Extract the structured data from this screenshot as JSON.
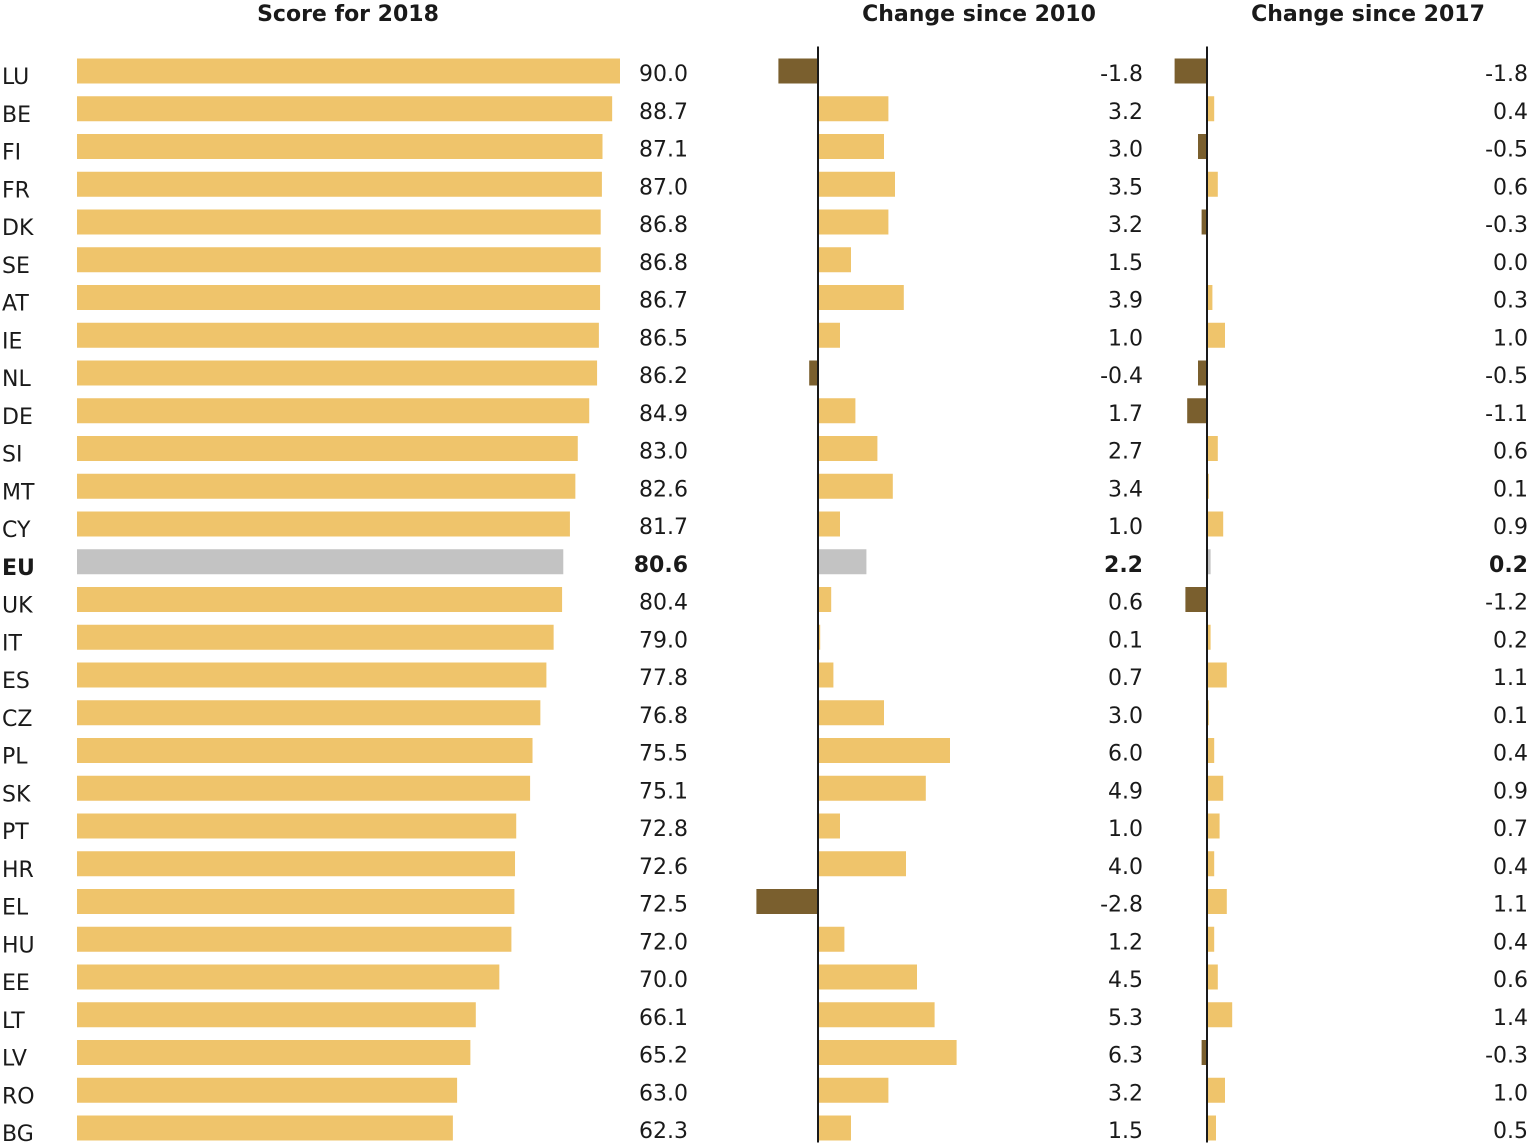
{
  "colors": {
    "positive": "#efc46b",
    "negative": "#7a5f2e",
    "eu": "#c3c3c3",
    "axis": "#1a1a1a"
  },
  "chart_data": [
    {
      "type": "bar",
      "orientation": "horizontal",
      "title": "Score for 2018",
      "categories": [
        "LU",
        "BE",
        "FI",
        "FR",
        "DK",
        "SE",
        "AT",
        "IE",
        "NL",
        "DE",
        "SI",
        "MT",
        "CY",
        "EU",
        "UK",
        "IT",
        "ES",
        "CZ",
        "PL",
        "SK",
        "PT",
        "HR",
        "EL",
        "HU",
        "EE",
        "LT",
        "LV",
        "RO",
        "BG"
      ],
      "values": [
        90.0,
        88.7,
        87.1,
        87.0,
        86.8,
        86.8,
        86.7,
        86.5,
        86.2,
        84.9,
        83.0,
        82.6,
        81.7,
        80.6,
        80.4,
        79.0,
        77.8,
        76.8,
        75.5,
        75.1,
        72.8,
        72.6,
        72.5,
        72.0,
        70.0,
        66.1,
        65.2,
        63.0,
        62.3
      ],
      "labels": [
        "90.0",
        "88.7",
        "87.1",
        "87.0",
        "86.8",
        "86.8",
        "86.7",
        "86.5",
        "86.2",
        "84.9",
        "83.0",
        "82.6",
        "81.7",
        "80.6",
        "80.4",
        "79.0",
        "77.8",
        "76.8",
        "75.5",
        "75.1",
        "72.8",
        "72.6",
        "72.5",
        "72.0",
        "70.0",
        "66.1",
        "65.2",
        "63.0",
        "62.3"
      ],
      "highlight": "EU",
      "xlim": [
        0,
        90
      ]
    },
    {
      "type": "bar",
      "orientation": "horizontal",
      "title": "Change since 2010",
      "categories": [
        "LU",
        "BE",
        "FI",
        "FR",
        "DK",
        "SE",
        "AT",
        "IE",
        "NL",
        "DE",
        "SI",
        "MT",
        "CY",
        "EU",
        "UK",
        "IT",
        "ES",
        "CZ",
        "PL",
        "SK",
        "PT",
        "HR",
        "EL",
        "HU",
        "EE",
        "LT",
        "LV",
        "RO",
        "BG"
      ],
      "values": [
        -1.8,
        3.2,
        3.0,
        3.5,
        3.2,
        1.5,
        3.9,
        1.0,
        -0.4,
        1.7,
        2.7,
        3.4,
        1.0,
        2.2,
        0.6,
        0.1,
        0.7,
        3.0,
        6.0,
        4.9,
        1.0,
        4.0,
        -2.8,
        1.2,
        4.5,
        5.3,
        6.3,
        3.2,
        1.5
      ],
      "labels": [
        "-1.8",
        "3.2",
        "3.0",
        "3.5",
        "3.2",
        "1.5",
        "3.9",
        "1.0",
        "-0.4",
        "1.7",
        "2.7",
        "3.4",
        "1.0",
        "2.2",
        "0.6",
        "0.1",
        "0.7",
        "3.0",
        "6.0",
        "4.9",
        "1.0",
        "4.0",
        "-2.8",
        "1.2",
        "4.5",
        "5.3",
        "6.3",
        "3.2",
        "1.5"
      ],
      "highlight": "EU"
    },
    {
      "type": "bar",
      "orientation": "horizontal",
      "title": "Change since 2017",
      "categories": [
        "LU",
        "BE",
        "FI",
        "FR",
        "DK",
        "SE",
        "AT",
        "IE",
        "NL",
        "DE",
        "SI",
        "MT",
        "CY",
        "EU",
        "UK",
        "IT",
        "ES",
        "CZ",
        "PL",
        "SK",
        "PT",
        "HR",
        "EL",
        "HU",
        "EE",
        "LT",
        "LV",
        "RO",
        "BG"
      ],
      "values": [
        -1.8,
        0.4,
        -0.5,
        0.6,
        -0.3,
        0.0,
        0.3,
        1.0,
        -0.5,
        -1.1,
        0.6,
        0.1,
        0.9,
        0.2,
        -1.2,
        0.2,
        1.1,
        0.1,
        0.4,
        0.9,
        0.7,
        0.4,
        1.1,
        0.4,
        0.6,
        1.4,
        -0.3,
        1.0,
        0.5
      ],
      "labels": [
        "-1.8",
        "0.4",
        "-0.5",
        "0.6",
        "-0.3",
        "0.0",
        "0.3",
        "1.0",
        "-0.5",
        "-1.1",
        "0.6",
        "0.1",
        "0.9",
        "0.2",
        "-1.2",
        "0.2",
        "1.1",
        "0.1",
        "0.4",
        "0.9",
        "0.7",
        "0.4",
        "1.1",
        "0.4",
        "0.6",
        "1.4",
        "-0.3",
        "1.0",
        "0.5"
      ],
      "highlight": "EU"
    }
  ]
}
